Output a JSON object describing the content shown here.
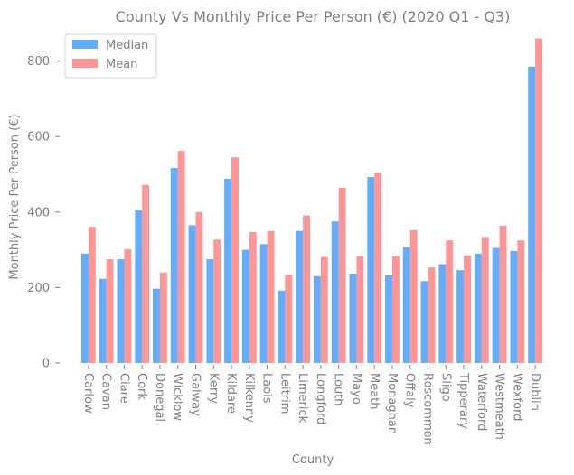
{
  "chart_data": {
    "type": "bar",
    "title": "County Vs Monthly Price Per Person (€) (2020 Q1 - Q3)",
    "xlabel": "County",
    "ylabel": "Monthly Price Per Person (€)",
    "ylim": [
      0,
      890
    ],
    "yticks": [
      "0",
      "200",
      "400",
      "600",
      "800"
    ],
    "grid": false,
    "legend_position": "top-left",
    "categories": [
      "Carlow",
      "Cavan",
      "Clare",
      "Cork",
      "Donegal",
      "Wicklow",
      "Galway",
      "Kerry",
      "Kildare",
      "Kilkenny",
      "Laois",
      "Leitrim",
      "Limerick",
      "Longford",
      "Louth",
      "Mayo",
      "Meath",
      "Monaghan",
      "Offaly",
      "Roscommon",
      "Sligo",
      "Tipperary",
      "Waterford",
      "Westmeath",
      "Wexford",
      "Dublin"
    ],
    "series": [
      {
        "name": "Median",
        "color": "#63adfc",
        "values": [
          290,
          223,
          275,
          405,
          197,
          517,
          365,
          275,
          488,
          300,
          315,
          192,
          350,
          230,
          375,
          237,
          493,
          232,
          307,
          217,
          262,
          246,
          290,
          305,
          297,
          785
        ]
      },
      {
        "name": "Mean",
        "color": "#fd9696",
        "values": [
          361,
          275,
          302,
          472,
          240,
          562,
          400,
          327,
          545,
          347,
          350,
          235,
          391,
          281,
          464,
          283,
          503,
          283,
          352,
          253,
          325,
          285,
          334,
          364,
          325,
          860
        ]
      }
    ]
  }
}
